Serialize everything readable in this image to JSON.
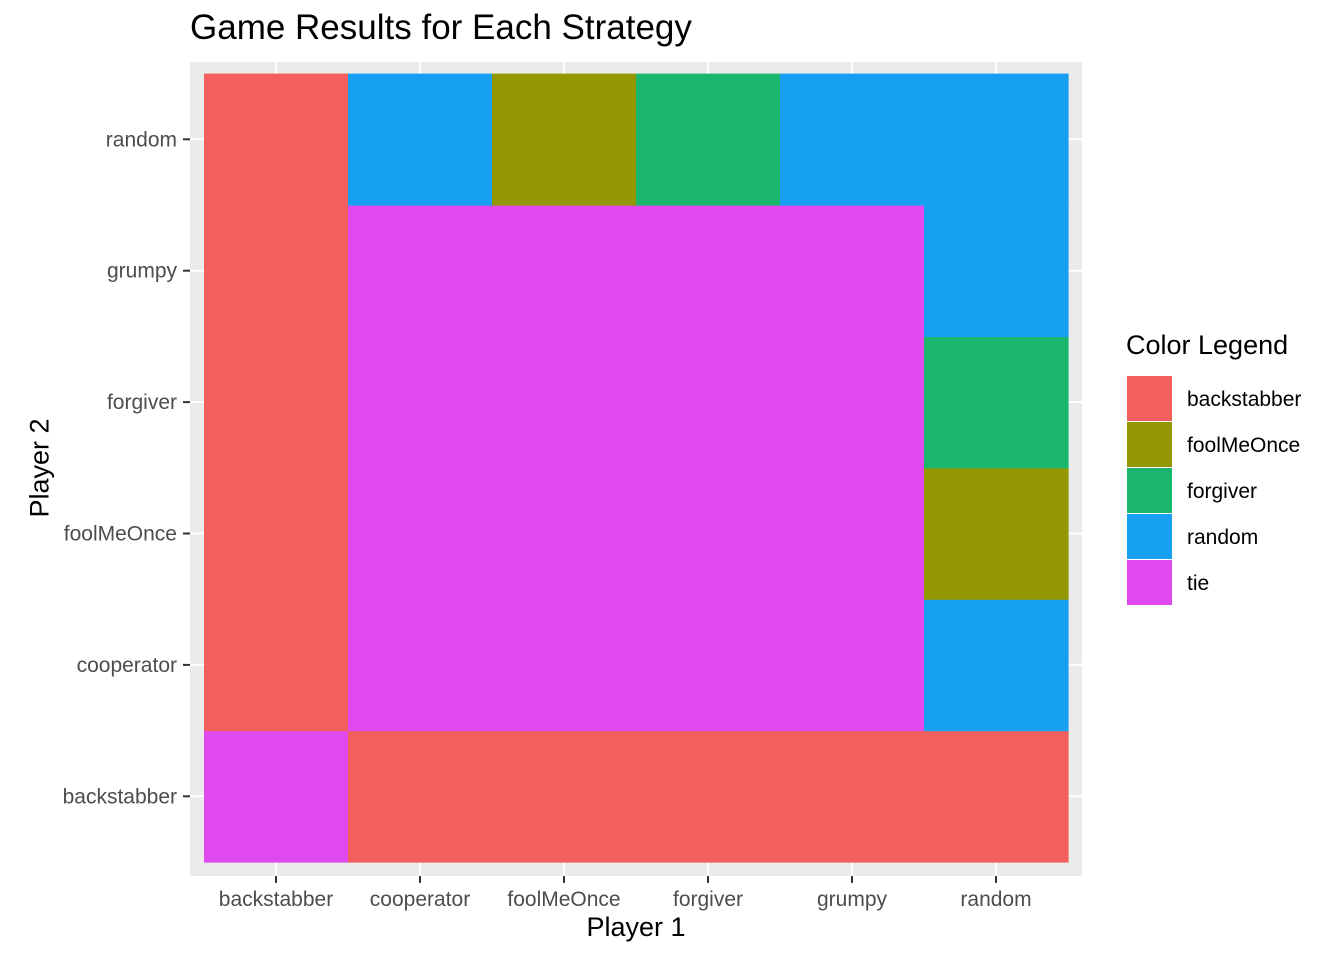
{
  "colors": {
    "panel_background": "#EBEBEB",
    "gridline": "#FFFFFF",
    "tick_label": "#4D4D4D",
    "backstabber": "#F25F5C",
    "foolMeOnce": "#939701",
    "forgiver": "#1BB66D",
    "random": "#17A0F1",
    "tie": "#E049EE"
  },
  "chart_data": {
    "type": "heatmap",
    "title": "Game Results for Each Strategy",
    "xlabel": "Player 1",
    "ylabel": "Player 2",
    "x": [
      "backstabber",
      "cooperator",
      "foolMeOnce",
      "forgiver",
      "grumpy",
      "random"
    ],
    "y": [
      "backstabber",
      "cooperator",
      "foolMeOnce",
      "forgiver",
      "grumpy",
      "random"
    ],
    "rows": [
      {
        "player2": "backstabber",
        "results": [
          "tie",
          "backstabber",
          "backstabber",
          "backstabber",
          "backstabber",
          "backstabber"
        ]
      },
      {
        "player2": "cooperator",
        "results": [
          "backstabber",
          "tie",
          "tie",
          "tie",
          "tie",
          "random"
        ]
      },
      {
        "player2": "foolMeOnce",
        "results": [
          "backstabber",
          "tie",
          "tie",
          "tie",
          "tie",
          "foolMeOnce"
        ]
      },
      {
        "player2": "forgiver",
        "results": [
          "backstabber",
          "tie",
          "tie",
          "tie",
          "tie",
          "forgiver"
        ]
      },
      {
        "player2": "grumpy",
        "results": [
          "backstabber",
          "tie",
          "tie",
          "tie",
          "tie",
          "random"
        ]
      },
      {
        "player2": "random",
        "results": [
          "backstabber",
          "random",
          "foolMeOnce",
          "forgiver",
          "random",
          "random"
        ]
      }
    ],
    "legend": {
      "title": "Color Legend",
      "position": "right",
      "entries": [
        "backstabber",
        "foolMeOnce",
        "forgiver",
        "random",
        "tie"
      ]
    },
    "grid": true
  }
}
